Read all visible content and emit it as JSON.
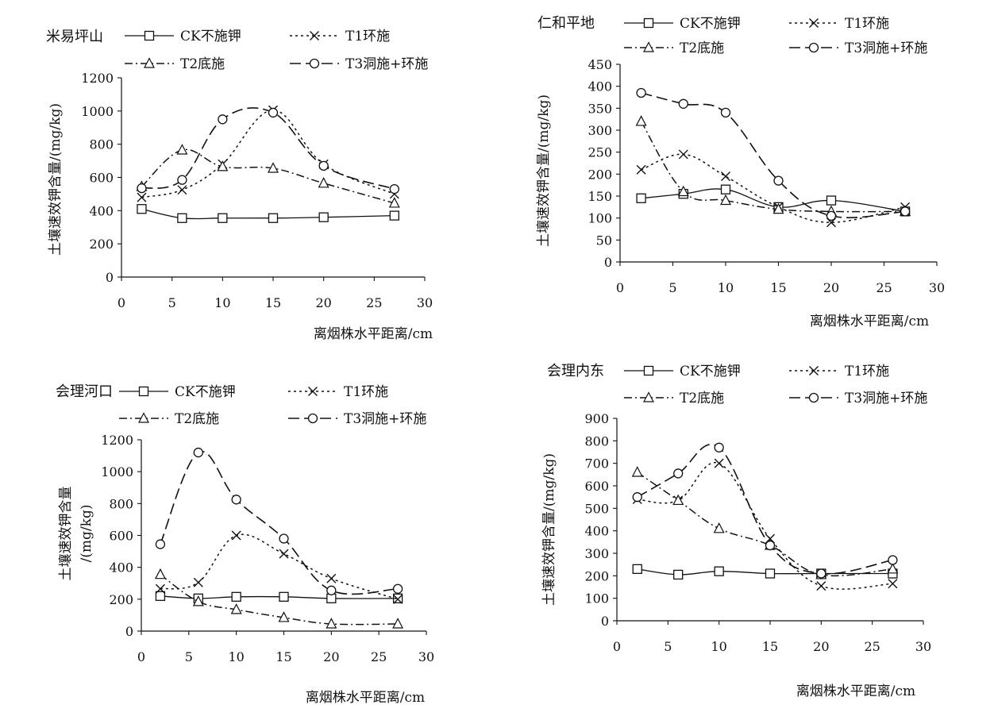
{
  "series_legend": {
    "ck": "CK不施钾",
    "t1": "T1环施",
    "t2": "T2底施",
    "t3": "T3洞施+环施"
  },
  "chart_data": [
    {
      "type": "line",
      "title": "米易坪山",
      "xlabel": "离烟株水平距离/cm",
      "ylabel": "土壤速效钾含量/(mg/kg)",
      "xlim": [
        0,
        30
      ],
      "ylim": [
        0,
        1200
      ],
      "xticks": [
        "0",
        "5",
        "10",
        "15",
        "20",
        "25",
        "30"
      ],
      "yticks": [
        "0",
        "200",
        "400",
        "600",
        "800",
        "1000",
        "1200"
      ],
      "x": [
        2,
        6,
        10,
        15,
        20,
        27
      ],
      "series": [
        {
          "name": "CK不施钾",
          "values": [
            410,
            355,
            355,
            355,
            360,
            370
          ]
        },
        {
          "name": "T1环施",
          "values": [
            480,
            525,
            680,
            1005,
            680,
            500
          ]
        },
        {
          "name": "T2底施",
          "values": [
            545,
            765,
            665,
            655,
            565,
            445
          ]
        },
        {
          "name": "T3洞施+环施",
          "values": [
            535,
            585,
            950,
            990,
            670,
            530
          ]
        }
      ]
    },
    {
      "type": "line",
      "title": "仁和平地",
      "xlabel": "离烟株水平距离/cm",
      "ylabel": "土壤速效钾含量/(mg/kg)",
      "xlim": [
        0,
        30
      ],
      "ylim": [
        0,
        450
      ],
      "xticks": [
        "0",
        "5",
        "10",
        "15",
        "20",
        "25",
        "30"
      ],
      "yticks": [
        "0",
        "50",
        "100",
        "150",
        "200",
        "250",
        "300",
        "350",
        "400",
        "450"
      ],
      "x": [
        2,
        6,
        10,
        15,
        20,
        27
      ],
      "series": [
        {
          "name": "CK不施钾",
          "values": [
            145,
            155,
            165,
            125,
            140,
            115
          ]
        },
        {
          "name": "T1环施",
          "values": [
            210,
            245,
            195,
            125,
            90,
            125
          ]
        },
        {
          "name": "T2底施",
          "values": [
            320,
            160,
            140,
            120,
            115,
            115
          ]
        },
        {
          "name": "T3洞施+环施",
          "values": [
            385,
            360,
            340,
            185,
            105,
            115
          ]
        }
      ]
    },
    {
      "type": "line",
      "title": "会理河口",
      "xlabel": "离烟株水平距离/cm",
      "ylabel": "土壤速效钾含量 /(mg/kg)",
      "ylabel_lines": [
        "土壤速效钾含量",
        "/(mg/kg)"
      ],
      "xlim": [
        0,
        30
      ],
      "ylim": [
        0,
        1200
      ],
      "xticks": [
        "0",
        "5",
        "10",
        "15",
        "20",
        "25",
        "30"
      ],
      "yticks": [
        "0",
        "200",
        "400",
        "600",
        "800",
        "1000",
        "1200"
      ],
      "x": [
        2,
        6,
        10,
        15,
        20,
        27
      ],
      "series": [
        {
          "name": "CK不施钾",
          "values": [
            220,
            205,
            215,
            215,
            205,
            205
          ]
        },
        {
          "name": "T1环施",
          "values": [
            265,
            305,
            600,
            485,
            330,
            200
          ]
        },
        {
          "name": "T2底施",
          "values": [
            355,
            185,
            135,
            85,
            45,
            45
          ]
        },
        {
          "name": "T3洞施+环施",
          "values": [
            545,
            1120,
            825,
            580,
            255,
            265
          ]
        }
      ]
    },
    {
      "type": "line",
      "title": "会理内东",
      "xlabel": "离烟株水平距离/cm",
      "ylabel": "土壤速效钾含量/(mg/kg)",
      "xlim": [
        0,
        30
      ],
      "ylim": [
        0,
        900
      ],
      "xticks": [
        "0",
        "5",
        "10",
        "15",
        "20",
        "25",
        "30"
      ],
      "yticks": [
        "0",
        "100",
        "200",
        "300",
        "400",
        "500",
        "600",
        "700",
        "800",
        "900"
      ],
      "x": [
        2,
        6,
        10,
        15,
        20,
        27
      ],
      "series": [
        {
          "name": "CK不施钾",
          "values": [
            230,
            205,
            220,
            210,
            210,
            210
          ]
        },
        {
          "name": "T1环施",
          "values": [
            540,
            535,
            700,
            365,
            155,
            165
          ]
        },
        {
          "name": "T2底施",
          "values": [
            660,
            535,
            410,
            335,
            205,
            230
          ]
        },
        {
          "name": "T3洞施+环施",
          "values": [
            550,
            655,
            770,
            335,
            210,
            270
          ]
        }
      ]
    }
  ]
}
